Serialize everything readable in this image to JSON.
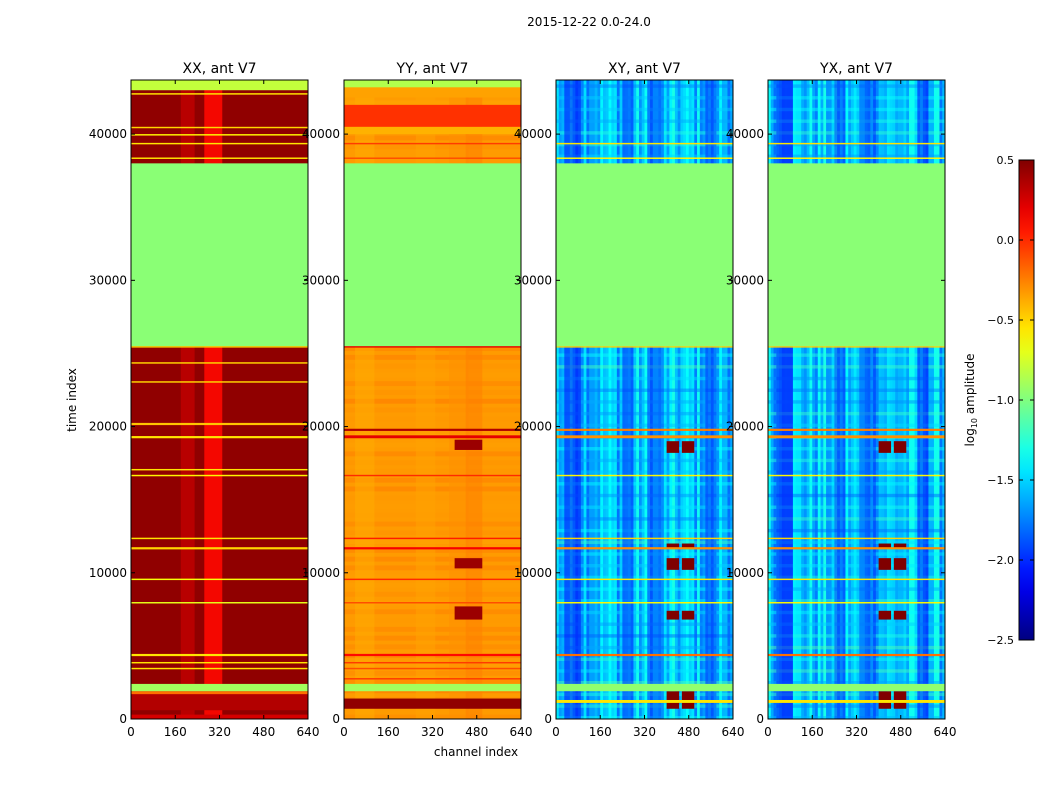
{
  "chart_data": {
    "type": "heatmap",
    "suptitle": "2015-12-22 0.0-24.0",
    "xlabel": "channel index",
    "ylabel": "time index",
    "xlim": [
      0,
      640
    ],
    "ylim": [
      0,
      43700
    ],
    "xticks": [
      0,
      160,
      320,
      480,
      640
    ],
    "yticks": [
      0,
      10000,
      20000,
      30000,
      40000
    ],
    "panels": [
      {
        "title": "XX, ant V7",
        "mode": "xx",
        "bands": [
          [
            0,
            300,
            0.25
          ],
          [
            600,
            2000,
            0.35
          ],
          [
            1700,
            1900,
            -0.2
          ],
          [
            1900,
            2400,
            -0.9
          ],
          [
            3400,
            3500,
            -0.55
          ],
          [
            3800,
            3900,
            -0.55
          ],
          [
            4300,
            4450,
            -0.55
          ],
          [
            7900,
            8000,
            -0.7
          ],
          [
            9500,
            9600,
            -0.65
          ],
          [
            11600,
            11750,
            -0.5
          ],
          [
            12300,
            12400,
            -0.55
          ],
          [
            16600,
            16700,
            -0.6
          ],
          [
            17000,
            17100,
            -0.55
          ],
          [
            19200,
            19350,
            -0.55
          ],
          [
            20100,
            20250,
            -0.45
          ],
          [
            23000,
            23100,
            -0.5
          ],
          [
            24300,
            24400,
            -0.5
          ],
          [
            25400,
            25500,
            -0.5
          ],
          [
            25500,
            38000,
            -0.97
          ],
          [
            38300,
            38400,
            -0.55
          ],
          [
            39300,
            39400,
            -0.55
          ],
          [
            39900,
            40000,
            -0.6
          ],
          [
            40400,
            40500,
            -0.5
          ],
          [
            42700,
            42800,
            -0.55
          ],
          [
            43000,
            43700,
            -0.8
          ]
        ],
        "stripes": [
          [
            265,
            330,
            0.1
          ],
          [
            180,
            230,
            0.32
          ]
        ]
      },
      {
        "title": "YY, ant V7",
        "mode": "yy",
        "bands": [
          [
            700,
            1400,
            0.45
          ],
          [
            1900,
            2400,
            -0.9
          ],
          [
            2700,
            2800,
            -0.05
          ],
          [
            3400,
            3500,
            -0.1
          ],
          [
            3800,
            3900,
            -0.05
          ],
          [
            4300,
            4450,
            0.1
          ],
          [
            7900,
            8000,
            -0.1
          ],
          [
            9500,
            9600,
            0.0
          ],
          [
            11600,
            11750,
            0.15
          ],
          [
            12300,
            12400,
            0.05
          ],
          [
            16600,
            16700,
            0.0
          ],
          [
            19200,
            19400,
            0.2
          ],
          [
            19700,
            19850,
            0.35
          ],
          [
            25400,
            25500,
            0.2
          ],
          [
            25500,
            38000,
            -0.97
          ],
          [
            38300,
            38400,
            -0.1
          ],
          [
            39300,
            39400,
            -0.05
          ],
          [
            40000,
            40500,
            -0.4
          ],
          [
            40500,
            42000,
            -0.02
          ],
          [
            42500,
            43200,
            -0.35
          ],
          [
            43200,
            43700,
            -0.85
          ]
        ],
        "stripes": [
          [
            380,
            450,
            -0.3
          ],
          [
            440,
            500,
            -0.25
          ],
          [
            40,
            110,
            -0.38
          ],
          [
            260,
            330,
            -0.35
          ]
        ]
      },
      {
        "title": "XY, ant V7",
        "mode": "cross",
        "bands": [
          [
            1100,
            1300,
            -0.55
          ],
          [
            1900,
            2400,
            -0.95
          ],
          [
            4300,
            4450,
            -0.2
          ],
          [
            7900,
            8000,
            -0.6
          ],
          [
            9500,
            9600,
            -0.55
          ],
          [
            11600,
            11750,
            -0.3
          ],
          [
            12300,
            12400,
            -0.5
          ],
          [
            16600,
            16700,
            -0.6
          ],
          [
            19200,
            19400,
            -0.3
          ],
          [
            19700,
            19850,
            -0.25
          ],
          [
            25400,
            25500,
            -0.5
          ],
          [
            25500,
            38000,
            -0.97
          ],
          [
            38300,
            38400,
            -0.6
          ],
          [
            39300,
            39400,
            -0.55
          ]
        ],
        "stripes": [
          [
            30,
            90,
            -2.1
          ],
          [
            240,
            280,
            -2.0
          ],
          [
            330,
            390,
            -1.95
          ],
          [
            540,
            580,
            -2.05
          ]
        ]
      },
      {
        "title": "YX, ant V7",
        "mode": "cross",
        "bands": [
          [
            1100,
            1300,
            -0.55
          ],
          [
            1900,
            2400,
            -0.95
          ],
          [
            4300,
            4450,
            -0.2
          ],
          [
            7900,
            8000,
            -0.6
          ],
          [
            9500,
            9600,
            -0.55
          ],
          [
            11600,
            11750,
            -0.3
          ],
          [
            12300,
            12400,
            -0.5
          ],
          [
            16600,
            16700,
            -0.6
          ],
          [
            19200,
            19400,
            -0.3
          ],
          [
            19700,
            19850,
            -0.25
          ],
          [
            25400,
            25500,
            -0.5
          ],
          [
            25500,
            38000,
            -0.97
          ],
          [
            38300,
            38400,
            -0.6
          ],
          [
            39300,
            39400,
            -0.55
          ]
        ],
        "stripes": [
          [
            30,
            90,
            -2.1
          ],
          [
            240,
            280,
            -2.0
          ],
          [
            330,
            390,
            -1.95
          ],
          [
            540,
            580,
            -2.05
          ]
        ]
      }
    ],
    "colorbar": {
      "label": "log10 amplitude",
      "label_prefix": "log",
      "label_sub": "10",
      "label_suffix": " amplitude",
      "range": [
        -2.5,
        0.5
      ],
      "ticks": [
        0.5,
        0.0,
        -0.5,
        -1.0,
        -1.5,
        -2.0,
        -2.5
      ],
      "tick_labels": [
        "0.5",
        "0.0",
        "−0.5",
        "−1.0",
        "−1.5",
        "−2.0",
        "−2.5"
      ],
      "colormap": "jet"
    }
  }
}
